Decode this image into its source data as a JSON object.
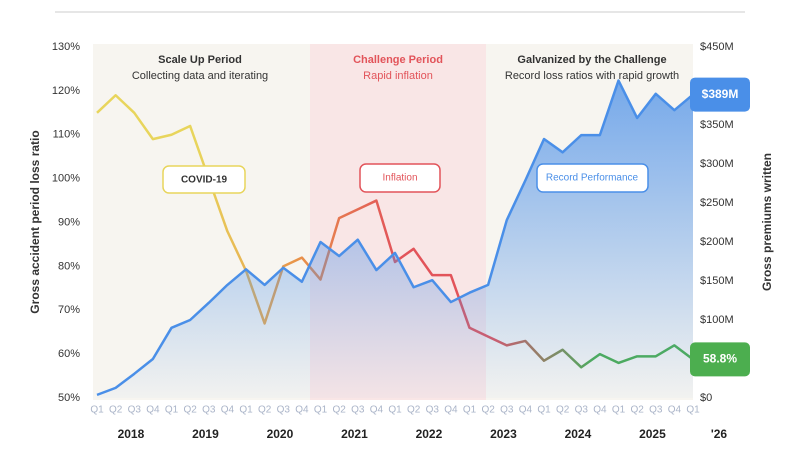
{
  "chart_data": {
    "type": "line",
    "periods": [
      {
        "title": "Scale Up Period",
        "subtitle": "Collecting data and iterating"
      },
      {
        "title": "Challenge Period",
        "subtitle": "Rapid inflation"
      },
      {
        "title": "Galvanized by the Challenge",
        "subtitle": "Record loss ratios with rapid growth"
      }
    ],
    "annotations": [
      "COVID-19",
      "Inflation",
      "Record Performance"
    ],
    "ylabel": "Gross accident period loss ratio",
    "y2label": "Gross premiums written",
    "categories": [
      "Q1",
      "Q2",
      "Q3",
      "Q4",
      "Q1",
      "Q2",
      "Q3",
      "Q4",
      "Q1",
      "Q2",
      "Q3",
      "Q4",
      "Q1",
      "Q2",
      "Q3",
      "Q4",
      "Q1",
      "Q2",
      "Q3",
      "Q4",
      "Q1",
      "Q2",
      "Q3",
      "Q4",
      "Q1",
      "Q2",
      "Q3",
      "Q4",
      "Q1",
      "Q2",
      "Q3",
      "Q4",
      "Q1"
    ],
    "years": [
      "2018",
      "2019",
      "2020",
      "2021",
      "2022",
      "2023",
      "2024",
      "2025",
      "'26"
    ],
    "series": [
      {
        "name": "Gross accident period loss ratio",
        "axis": "y",
        "color": "#e2545a",
        "colors": [
          "#e8d55c",
          "#e8d55c",
          "#e8944a",
          "#e2545a",
          "#e2545a",
          "#4cae4f",
          "#4cae4f"
        ],
        "values": [
          115,
          119,
          115,
          109,
          110,
          112,
          100,
          88,
          79,
          67,
          80,
          82,
          77,
          91,
          93,
          95,
          81,
          84,
          78,
          78,
          66,
          64,
          62,
          63,
          58.5,
          61,
          57,
          60,
          58,
          59.5,
          59.5,
          62,
          58.8
        ],
        "value_labels": [
          null,
          null,
          null,
          null,
          null,
          null,
          null,
          null,
          null,
          null,
          null,
          null,
          null,
          null,
          null,
          null,
          null,
          null,
          null,
          null,
          null,
          null,
          null,
          null,
          null,
          null,
          null,
          null,
          null,
          null,
          null,
          null,
          "58.8%"
        ]
      },
      {
        "name": "Gross premiums written",
        "axis": "y2",
        "color": "#4a8fe8",
        "values": [
          4,
          13,
          31,
          50,
          90,
          100,
          122,
          145,
          165,
          145,
          167,
          149,
          200,
          182,
          203,
          164,
          186,
          142,
          151,
          123,
          135,
          145,
          228,
          279,
          332,
          315,
          337,
          337,
          407,
          359,
          390,
          369,
          389
        ],
        "value_labels": [
          null,
          null,
          null,
          null,
          null,
          null,
          null,
          null,
          null,
          null,
          null,
          null,
          null,
          null,
          null,
          null,
          null,
          null,
          null,
          null,
          null,
          null,
          null,
          null,
          null,
          null,
          null,
          null,
          null,
          null,
          null,
          null,
          "$389M"
        ]
      }
    ],
    "ylim": [
      50,
      130
    ],
    "yticks": [
      {
        "value": 50,
        "label": "50%"
      },
      {
        "value": 60,
        "label": "60%"
      },
      {
        "value": 70,
        "label": "70%"
      },
      {
        "value": 80,
        "label": "80%"
      },
      {
        "value": 90,
        "label": "90%"
      },
      {
        "value": 100,
        "label": "100%"
      },
      {
        "value": 110,
        "label": "110%"
      },
      {
        "value": 120,
        "label": "120%"
      },
      {
        "value": 130,
        "label": "130%"
      }
    ],
    "y2lim": [
      0,
      450
    ],
    "y2ticks": [
      {
        "value": 0,
        "label": "$0"
      },
      {
        "value": 50,
        "label": "$50M"
      },
      {
        "value": 100,
        "label": "$100M"
      },
      {
        "value": 150,
        "label": "$150M"
      },
      {
        "value": 200,
        "label": "$200M"
      },
      {
        "value": 250,
        "label": "$250M"
      },
      {
        "value": 300,
        "label": "$300M"
      },
      {
        "value": 350,
        "label": "$350M"
      },
      {
        "value": 400,
        "label": "$400M"
      },
      {
        "value": 450,
        "label": "$450M"
      }
    ]
  }
}
